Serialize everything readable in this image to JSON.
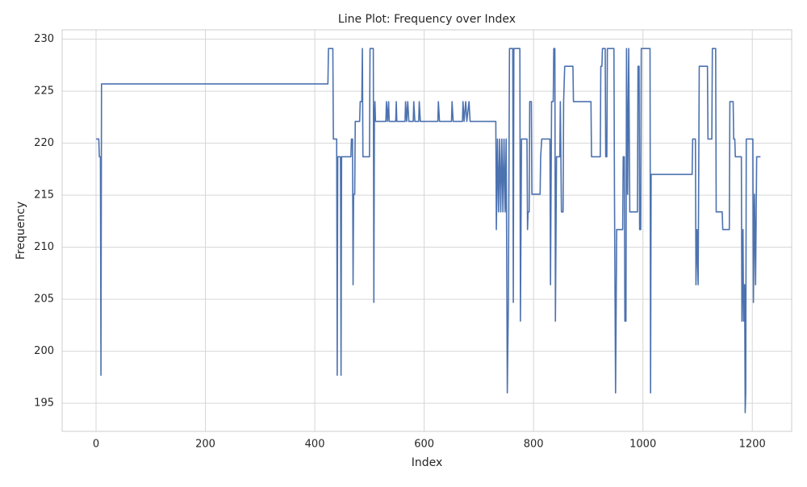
{
  "chart_data": {
    "type": "line",
    "title": "Line Plot: Frequency over Index",
    "xlabel": "Index",
    "ylabel": "Frequency",
    "xlim": [
      -62,
      1272
    ],
    "ylim": [
      192.3,
      230.9
    ],
    "xticks": [
      0,
      200,
      400,
      600,
      800,
      1000,
      1200
    ],
    "yticks": [
      195,
      200,
      205,
      210,
      215,
      220,
      225,
      230
    ],
    "grid": true,
    "series": [
      {
        "name": "Frequency",
        "color": "#4c72b0",
        "x": [
          0,
          5,
          6,
          8,
          9,
          10,
          424,
          425,
          433,
          434,
          440,
          441,
          442,
          447,
          448,
          449,
          466,
          467,
          469,
          470,
          471,
          473,
          474,
          482,
          483,
          486,
          487,
          488,
          500,
          501,
          507,
          508,
          509,
          510,
          511,
          530,
          531,
          533,
          535,
          536,
          548,
          549,
          550,
          565,
          566,
          568,
          570,
          572,
          580,
          581,
          583,
          590,
          591,
          593,
          625,
          626,
          628,
          650,
          651,
          653,
          670,
          671,
          673,
          676,
          678,
          682,
          684,
          731,
          732,
          734,
          736,
          738,
          740,
          742,
          744,
          746,
          748,
          750,
          752,
          754,
          756,
          762,
          763,
          764,
          775,
          776,
          778,
          788,
          789,
          790,
          792,
          793,
          796,
          797,
          812,
          813,
          815,
          830,
          831,
          833,
          836,
          837,
          839,
          840,
          842,
          848,
          849,
          851,
          854,
          855,
          857,
          872,
          873,
          905,
          906,
          922,
          923,
          925,
          926,
          931,
          932,
          934,
          935,
          947,
          948,
          950,
          952,
          963,
          964,
          966,
          967,
          969,
          970,
          972,
          974,
          976,
          990,
          991,
          993,
          994,
          996,
          997,
          1013,
          1014,
          1015,
          1090,
          1091,
          1096,
          1097,
          1099,
          1101,
          1103,
          1118,
          1119,
          1126,
          1127,
          1133,
          1134,
          1145,
          1146,
          1158,
          1159,
          1165,
          1166,
          1168,
          1169,
          1180,
          1181,
          1183,
          1184,
          1186,
          1187,
          1188,
          1189,
          1201,
          1202,
          1204,
          1206,
          1208,
          1215
        ],
        "values": [
          220.4,
          220.4,
          218.7,
          218.7,
          197.7,
          225.7,
          225.7,
          229.1,
          229.1,
          220.4,
          220.4,
          197.7,
          218.7,
          218.7,
          197.7,
          218.7,
          218.7,
          220.4,
          220.4,
          206.4,
          215.1,
          215.1,
          222.1,
          222.1,
          224,
          224,
          229.1,
          218.7,
          218.7,
          229.1,
          229.1,
          204.7,
          222.1,
          224,
          222.1,
          222.1,
          224,
          222.1,
          224,
          222.1,
          222.1,
          224,
          222.1,
          222.1,
          224,
          222.1,
          224,
          222.1,
          222.1,
          224,
          222.1,
          222.1,
          224,
          222.1,
          222.1,
          224,
          222.1,
          222.1,
          224,
          222.1,
          222.1,
          224,
          222.1,
          224,
          222.1,
          224,
          222.1,
          222.1,
          211.7,
          220.4,
          213.4,
          220.4,
          213.4,
          220.4,
          213.4,
          220.4,
          213.4,
          220.4,
          196,
          204.7,
          229.1,
          229.1,
          204.7,
          229.1,
          229.1,
          202.9,
          220.4,
          220.4,
          211.7,
          213.4,
          213.4,
          224,
          224,
          215.1,
          215.1,
          218.7,
          220.4,
          220.4,
          206.4,
          224,
          224,
          229.1,
          229.1,
          202.9,
          218.7,
          218.7,
          224,
          213.4,
          213.4,
          224,
          227.4,
          227.4,
          224,
          224,
          218.7,
          218.7,
          227.4,
          227.4,
          229.1,
          229.1,
          218.7,
          218.7,
          229.1,
          229.1,
          215.1,
          196,
          211.7,
          211.7,
          218.7,
          218.7,
          202.9,
          202.9,
          229.1,
          215.1,
          229.1,
          213.4,
          213.4,
          227.4,
          227.4,
          211.7,
          211.7,
          229.1,
          229.1,
          196,
          217,
          217,
          220.4,
          220.4,
          206.4,
          211.7,
          206.4,
          227.4,
          227.4,
          220.4,
          220.4,
          229.1,
          229.1,
          213.4,
          213.4,
          211.7,
          211.7,
          224,
          224,
          220.4,
          220.4,
          218.7,
          218.7,
          202.9,
          211.7,
          202.9,
          206.4,
          194.1,
          196,
          220.4,
          220.4,
          204.7,
          215.1,
          206.4,
          218.7,
          218.7
        ]
      }
    ]
  }
}
